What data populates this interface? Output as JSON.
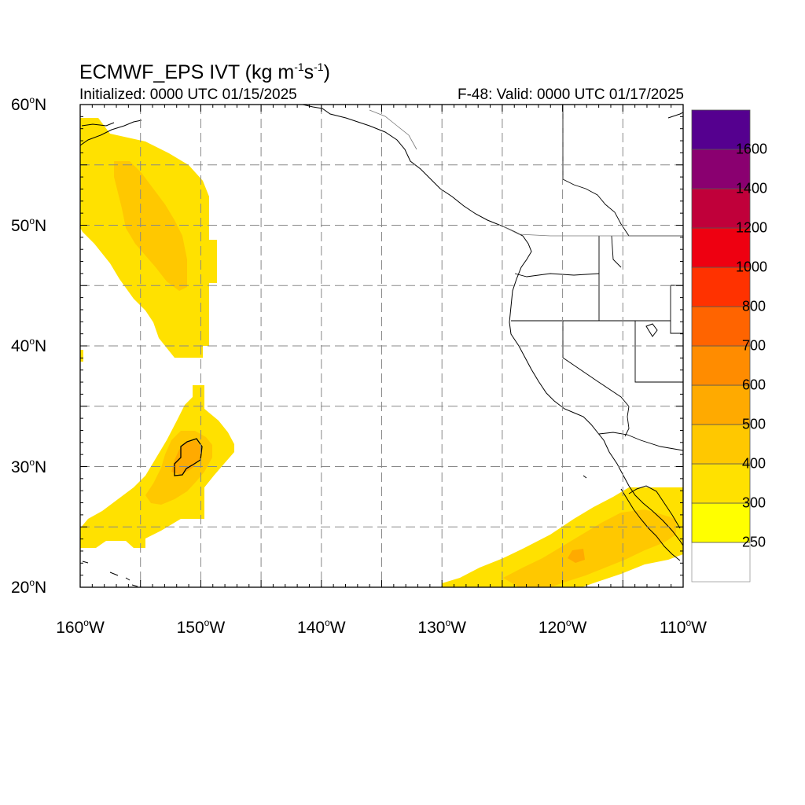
{
  "title": {
    "model": "ECMWF_EPS IVT (kg m",
    "exp1": "-1",
    "mid": "s",
    "exp2": "-1",
    "close": ")"
  },
  "subtitle_left": "Initialized: 0000 UTC 01/15/2025",
  "subtitle_right": "F-48: Valid: 0000 UTC 01/17/2025",
  "map": {
    "lon_range": [
      -160,
      -110
    ],
    "lat_range": [
      20,
      60
    ],
    "grid_interval_deg": 5,
    "grid_style": "dashed",
    "lat_labels": [
      {
        "lat": 60,
        "text": "60",
        "suffix": "N"
      },
      {
        "lat": 50,
        "text": "50",
        "suffix": "N"
      },
      {
        "lat": 40,
        "text": "40",
        "suffix": "N"
      },
      {
        "lat": 30,
        "text": "30",
        "suffix": "N"
      },
      {
        "lat": 20,
        "text": "20",
        "suffix": "N"
      }
    ],
    "lon_labels": [
      {
        "lon": -160,
        "text": "160",
        "suffix": "W"
      },
      {
        "lon": -150,
        "text": "150",
        "suffix": "W"
      },
      {
        "lon": -140,
        "text": "140",
        "suffix": "W"
      },
      {
        "lon": -130,
        "text": "130",
        "suffix": "W"
      },
      {
        "lon": -120,
        "text": "120",
        "suffix": "W"
      },
      {
        "lon": -110,
        "text": "110",
        "suffix": "W"
      }
    ]
  },
  "colorbar": {
    "labels": [
      "250",
      "300",
      "400",
      "500",
      "600",
      "700",
      "800",
      "1000",
      "1200",
      "1400",
      "1600"
    ],
    "colors": [
      "#ffffff",
      "#ffff00",
      "#ffe100",
      "#ffc800",
      "#ffaa00",
      "#ff8c00",
      "#ff6400",
      "#ff3200",
      "#ee0011",
      "#c0003a",
      "#8a0070",
      "#55008f"
    ]
  },
  "ivt_regions": [
    {
      "name": "north-pacific-plume",
      "level_colors": [
        "#ffe100",
        "#ffc800"
      ]
    },
    {
      "name": "subtropical-plume",
      "level_colors": [
        "#ffe100",
        "#ffc800",
        "#ffaa00"
      ]
    },
    {
      "name": "baja-plume",
      "level_colors": [
        "#ffe100",
        "#ffc800",
        "#ffaa00"
      ]
    }
  ]
}
